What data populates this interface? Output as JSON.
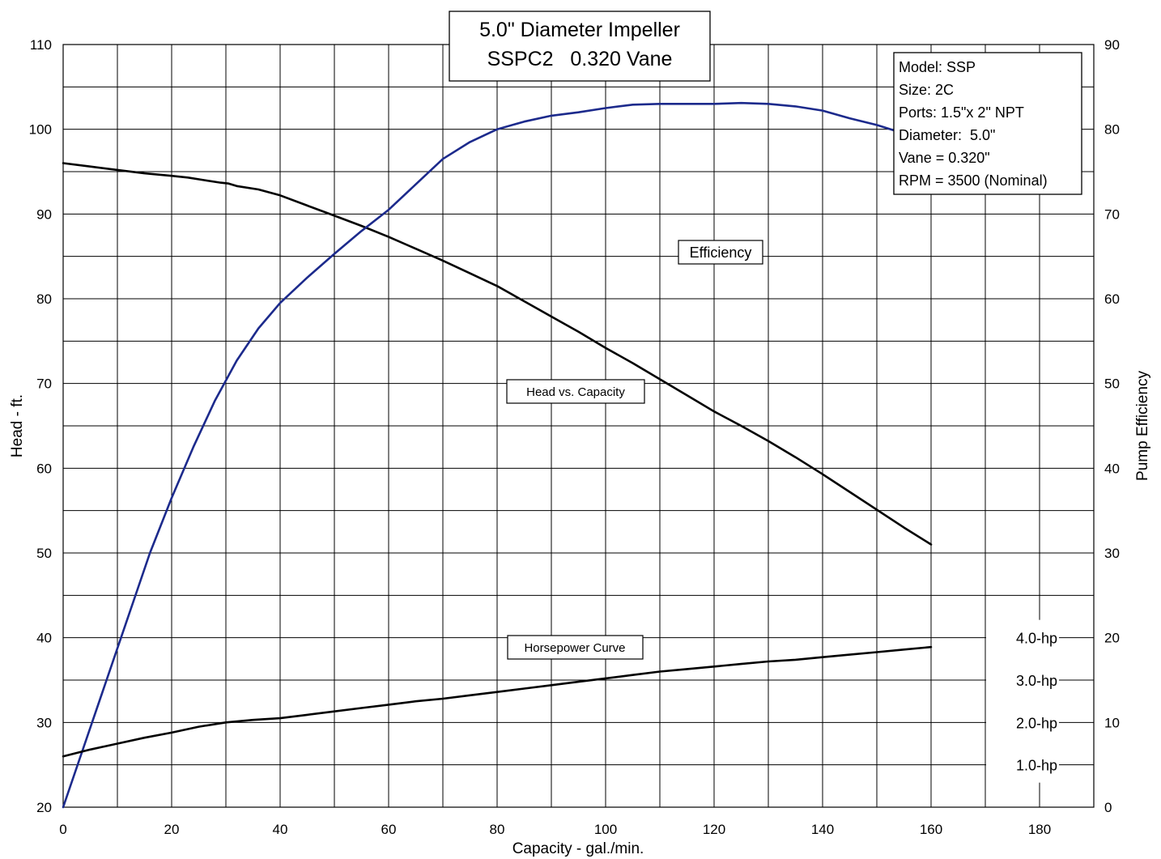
{
  "chart_data": {
    "type": "line",
    "title_lines": [
      "5.0\" Diameter Impeller",
      "SSPC2   0.320 Vane"
    ],
    "xlabel": "Capacity - gal./min.",
    "ylabel": "Head - ft.",
    "y2label": "Pump Efficiency",
    "xlim": [
      0,
      190
    ],
    "ylim": [
      20,
      110
    ],
    "y2lim": [
      0,
      90
    ],
    "x_ticks": [
      "0",
      "20",
      "40",
      "60",
      "80",
      "100",
      "120",
      "140",
      "160",
      "180"
    ],
    "y_ticks": [
      "20",
      "30",
      "40",
      "50",
      "60",
      "70",
      "80",
      "90",
      "100",
      "110"
    ],
    "y2_ticks": [
      "0",
      "10",
      "20",
      "30",
      "40",
      "50",
      "60",
      "70",
      "80",
      "90"
    ],
    "grid": true,
    "info_box": [
      "Model: SSP",
      "Size: 2C",
      "Ports: 1.5\"x 2\" NPT",
      "Diameter:  5.0\"",
      "Vane = 0.320\"",
      "RPM = 3500 (Nominal)"
    ],
    "series": [
      {
        "name": "Head vs. Capacity",
        "axis": "left",
        "color": "#000000",
        "x": [
          0,
          5,
          10,
          15,
          20,
          23,
          26,
          29,
          30.5,
          32,
          36,
          40,
          45,
          50,
          55,
          60,
          65,
          70,
          75,
          80,
          85,
          90,
          95,
          100,
          105,
          110,
          115,
          120,
          125,
          130,
          135,
          140,
          145,
          150,
          155,
          160
        ],
        "y": [
          96,
          95.6,
          95.2,
          94.8,
          94.5,
          94.3,
          94.0,
          93.7,
          93.6,
          93.3,
          92.9,
          92.2,
          91.0,
          89.8,
          88.6,
          87.3,
          85.9,
          84.5,
          83.0,
          81.5,
          79.7,
          77.9,
          76.1,
          74.2,
          72.4,
          70.5,
          68.6,
          66.7,
          65.0,
          63.2,
          61.3,
          59.3,
          57.2,
          55.1,
          53.0,
          51.0
        ]
      },
      {
        "name": "Efficiency",
        "axis": "right",
        "color": "#1c2a8c",
        "x": [
          0,
          4,
          8,
          12,
          16,
          20,
          24,
          28,
          32,
          36,
          40,
          45,
          50,
          55,
          60,
          65,
          70,
          75,
          80,
          85,
          90,
          95,
          100,
          105,
          110,
          115,
          120,
          125,
          130,
          135,
          140,
          145,
          150,
          155,
          160
        ],
        "y": [
          0,
          7.5,
          15,
          22.5,
          30,
          36.5,
          42.5,
          48.0,
          52.7,
          56.5,
          59.5,
          62.5,
          65.3,
          68.0,
          70.5,
          73.5,
          76.5,
          78.5,
          80.0,
          80.9,
          81.6,
          82.0,
          82.5,
          82.9,
          83.0,
          83.0,
          83.0,
          83.1,
          83.0,
          82.7,
          82.2,
          81.3,
          80.5,
          79.5,
          79.0
        ]
      },
      {
        "name": "Horsepower Curve",
        "axis": "left",
        "color": "#000000",
        "x": [
          0,
          5,
          10,
          15,
          20,
          25,
          30,
          35,
          40,
          45,
          50,
          55,
          60,
          65,
          70,
          75,
          80,
          85,
          90,
          95,
          100,
          105,
          110,
          115,
          120,
          125,
          130,
          135,
          140,
          145,
          150,
          155,
          160
        ],
        "y": [
          26,
          26.8,
          27.5,
          28.2,
          28.8,
          29.5,
          30.0,
          30.3,
          30.5,
          30.9,
          31.3,
          31.7,
          32.1,
          32.5,
          32.8,
          33.2,
          33.6,
          34.0,
          34.4,
          34.8,
          35.2,
          35.6,
          36.0,
          36.3,
          36.6,
          36.9,
          37.2,
          37.4,
          37.7,
          38.0,
          38.3,
          38.6,
          38.9
        ]
      }
    ],
    "curve_labels": {
      "efficiency": "Efficiency",
      "head": "Head vs. Capacity",
      "horsepower": "Horsepower Curve"
    },
    "horsepower_scale": [
      "4.0-hp",
      "3.0-hp",
      "2.0-hp",
      "1.0-hp"
    ],
    "horsepower_scale_heads": [
      40,
      35,
      30,
      25
    ],
    "colors": {
      "head": "#000000",
      "efficiency": "#1c2a8c",
      "horsepower": "#000000",
      "grid": "#000000"
    }
  }
}
